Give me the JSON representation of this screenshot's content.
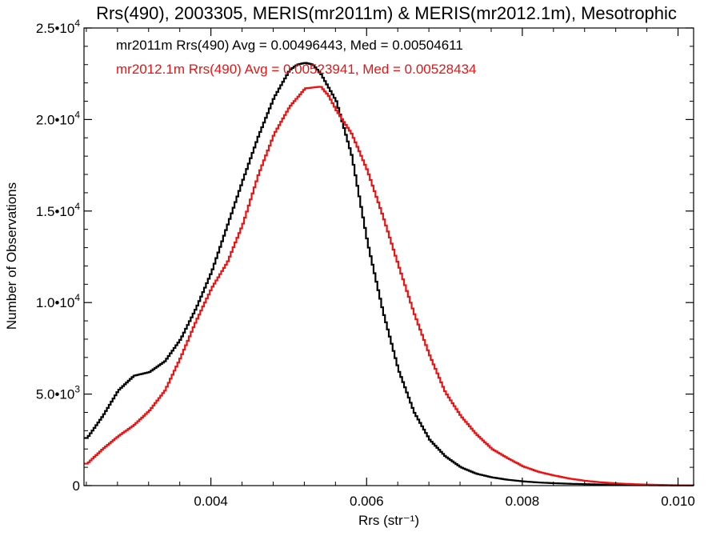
{
  "chart_data": {
    "type": "line",
    "title": "Rrs(490), 2003305, MERIS(mr2011m) & MERIS(mr2012.1m), Mesotrophic",
    "xlabel": "Rrs (str⁻¹)",
    "ylabel": "Number of Observations",
    "xlim": [
      0.00237,
      0.0102
    ],
    "ylim": [
      0,
      25000
    ],
    "x_ticks": [
      {
        "value": 0.004,
        "label": "0.004"
      },
      {
        "value": 0.006,
        "label": "0.006"
      },
      {
        "value": 0.008,
        "label": "0.008"
      },
      {
        "value": 0.01,
        "label": "0.010"
      }
    ],
    "y_ticks": [
      {
        "value": 0,
        "mant": "0",
        "exp": ""
      },
      {
        "value": 5000,
        "mant": "5.0•10",
        "exp": "3"
      },
      {
        "value": 10000,
        "mant": "1.0•10",
        "exp": "4"
      },
      {
        "value": 15000,
        "mant": "1.5•10",
        "exp": "4"
      },
      {
        "value": 20000,
        "mant": "2.0•10",
        "exp": "4"
      },
      {
        "value": 25000,
        "mant": "2.5•10",
        "exp": "4"
      }
    ],
    "grid": false,
    "legend_position": "top-left",
    "annotations": [
      "mr2011m Rrs(490) Avg = 0.00496443, Med = 0.00504611",
      "mr2012.1m Rrs(490) Avg = 0.00523941, Med = 0.00528434"
    ],
    "series": [
      {
        "name": "mr2011m",
        "color": "#000000",
        "x": [
          0.0024,
          0.0026,
          0.0028,
          0.003,
          0.0032,
          0.0034,
          0.0036,
          0.0038,
          0.004,
          0.0042,
          0.0044,
          0.0046,
          0.0048,
          0.005,
          0.0051,
          0.0052,
          0.0053,
          0.0054,
          0.0056,
          0.0058,
          0.006,
          0.0062,
          0.0064,
          0.0066,
          0.0068,
          0.007,
          0.0072,
          0.0074,
          0.0076,
          0.0078,
          0.008,
          0.0082,
          0.0084,
          0.0086,
          0.0088,
          0.009,
          0.0092,
          0.0094,
          0.0096,
          0.0098,
          0.01,
          0.0102
        ],
        "y": [
          2600,
          3800,
          5200,
          6000,
          6200,
          6800,
          8000,
          9700,
          11700,
          14200,
          16700,
          19100,
          21200,
          22700,
          23000,
          23100,
          23000,
          22500,
          21000,
          18000,
          13300,
          9500,
          6300,
          4000,
          2500,
          1600,
          1000,
          650,
          450,
          320,
          230,
          170,
          130,
          100,
          80,
          60,
          45,
          35,
          25,
          15,
          10,
          5
        ]
      },
      {
        "name": "mr2012.1m",
        "color": "#ee1111",
        "x": [
          0.0024,
          0.0026,
          0.0028,
          0.003,
          0.0032,
          0.0034,
          0.0036,
          0.0038,
          0.004,
          0.0042,
          0.0044,
          0.0046,
          0.0048,
          0.005,
          0.0052,
          0.0054,
          0.0055,
          0.0056,
          0.0058,
          0.006,
          0.0062,
          0.0064,
          0.0066,
          0.0068,
          0.007,
          0.0072,
          0.0074,
          0.0076,
          0.0078,
          0.008,
          0.0082,
          0.0084,
          0.0086,
          0.0088,
          0.009,
          0.0092,
          0.0094,
          0.0096,
          0.0098,
          0.01,
          0.0102
        ],
        "y": [
          1200,
          2000,
          2700,
          3300,
          4100,
          5200,
          7000,
          9000,
          10800,
          12200,
          14300,
          17000,
          19200,
          20700,
          21700,
          21800,
          21300,
          20500,
          19200,
          17200,
          14700,
          12000,
          9400,
          7100,
          5100,
          3800,
          2800,
          2000,
          1500,
          1050,
          750,
          550,
          380,
          260,
          180,
          120,
          80,
          55,
          35,
          20,
          10
        ]
      }
    ]
  }
}
